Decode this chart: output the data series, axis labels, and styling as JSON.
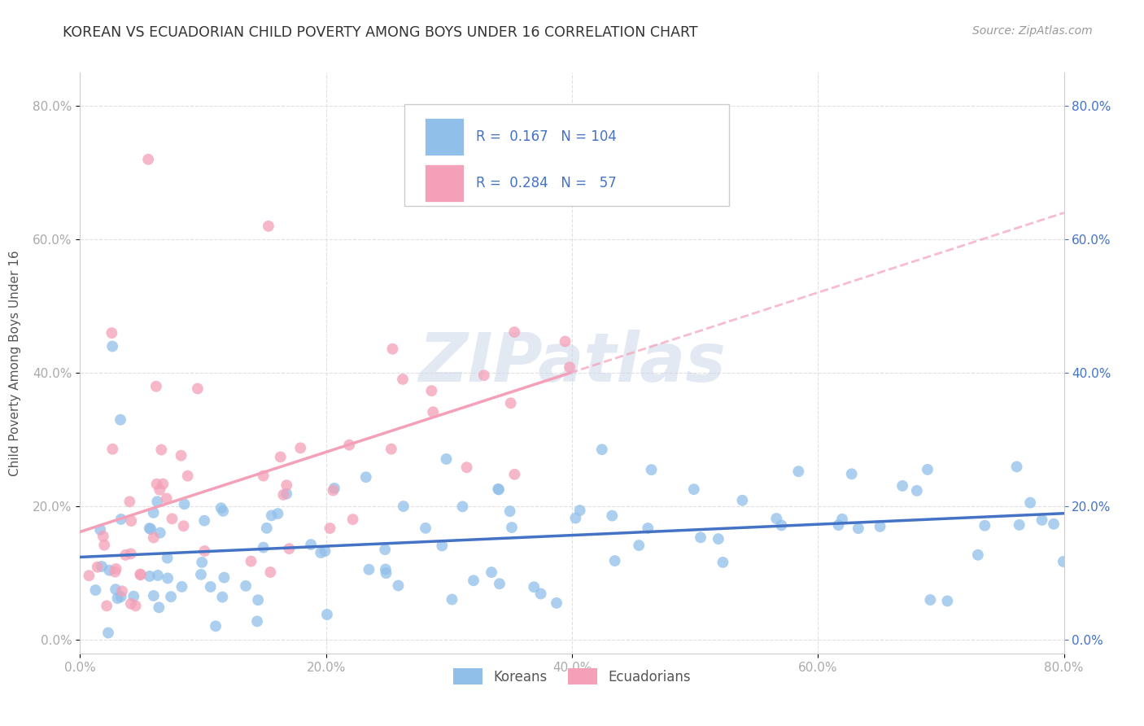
{
  "title": "KOREAN VS ECUADORIAN CHILD POVERTY AMONG BOYS UNDER 16 CORRELATION CHART",
  "source": "Source: ZipAtlas.com",
  "ylabel": "Child Poverty Among Boys Under 16",
  "xlim": [
    0.0,
    0.8
  ],
  "ylim": [
    -0.02,
    0.85
  ],
  "korean_color": "#90C0EA",
  "ecuadorian_color": "#F4A0B8",
  "korean_R": 0.167,
  "korean_N": 104,
  "ecuadorian_R": 0.284,
  "ecuadorian_N": 57,
  "watermark": "ZIPatlas",
  "legend_label_korean": "Koreans",
  "legend_label_ecuadorian": "Ecuadorians",
  "title_color": "#333333",
  "source_color": "#999999",
  "axis_label_color": "#555555",
  "tick_color": "#aaaaaa",
  "grid_color": "#e0e0e0",
  "blue_color": "#4472C4",
  "legend_text_color": "#4472C4"
}
